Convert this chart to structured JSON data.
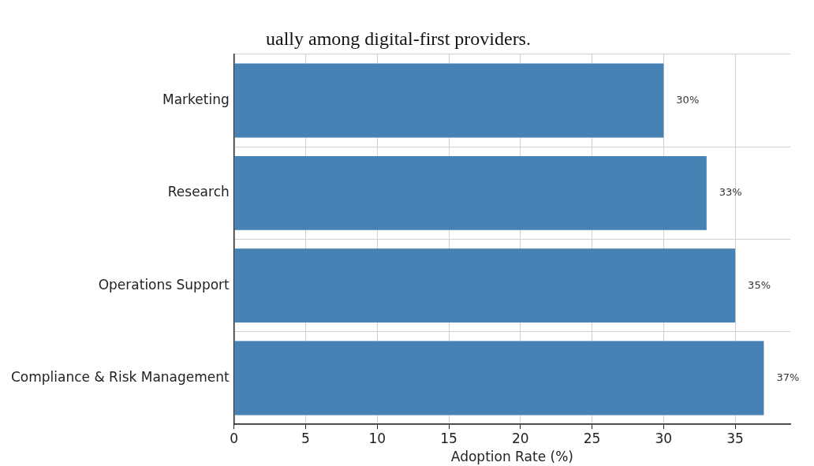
{
  "chart_data": {
    "type": "bar",
    "orientation": "horizontal",
    "title": "ually among digital-first providers.",
    "xlabel": "Adoption Rate (%)",
    "categories": [
      "Marketing",
      "Research",
      "Operations Support",
      "Compliance & Risk Management"
    ],
    "values": [
      30,
      33,
      35,
      37
    ],
    "color": "#4682b4",
    "value_labels": [
      "30%",
      "33%",
      "35%",
      "37%"
    ],
    "xlim": [
      0,
      38.85
    ],
    "xticks": [
      0,
      5,
      10,
      15,
      20,
      25,
      30,
      35
    ],
    "grid": true
  }
}
